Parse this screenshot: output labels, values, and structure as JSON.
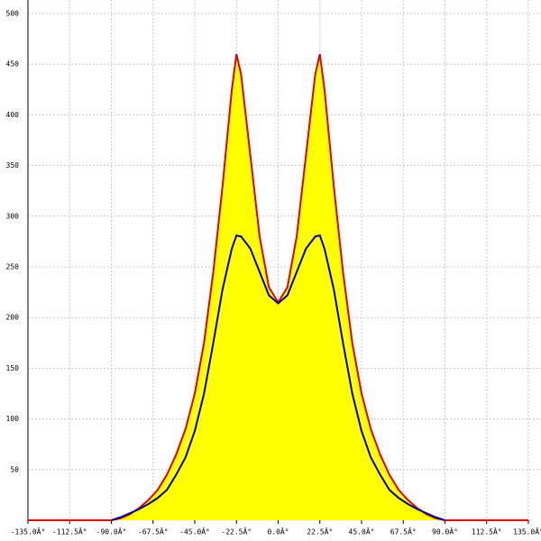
{
  "chart_data": {
    "type": "area",
    "x": [
      -135,
      -130,
      -125,
      -120,
      -115,
      -110,
      -105,
      -100,
      -95,
      -90,
      -85,
      -80,
      -75,
      -70,
      -65,
      -60,
      -55,
      -50,
      -45,
      -40,
      -35,
      -30,
      -25,
      -22.5,
      -20,
      -15,
      -10,
      -5,
      0,
      5,
      10,
      15,
      20,
      22.5,
      25,
      30,
      35,
      40,
      45,
      50,
      55,
      60,
      65,
      70,
      75,
      80,
      85,
      90,
      95,
      100,
      105,
      110,
      115,
      120,
      125,
      130,
      135
    ],
    "series": [
      {
        "color": "#e00000",
        "fill": "#ffff00",
        "values": [
          0,
          0,
          0,
          0,
          0,
          0,
          0,
          0,
          0,
          0,
          2,
          6,
          12,
          20,
          30,
          45,
          65,
          90,
          125,
          175,
          245,
          330,
          425,
          460,
          440,
          360,
          280,
          230,
          215,
          230,
          280,
          360,
          440,
          460,
          425,
          330,
          245,
          175,
          125,
          90,
          65,
          45,
          30,
          20,
          12,
          6,
          2,
          0,
          0,
          0,
          0,
          0,
          0,
          0,
          0,
          0,
          0
        ]
      },
      {
        "color": "#0000a0",
        "values": [
          null,
          null,
          null,
          null,
          null,
          null,
          null,
          null,
          null,
          0,
          3,
          7,
          11,
          16,
          22,
          30,
          45,
          62,
          88,
          125,
          175,
          228,
          268,
          281,
          280,
          268,
          245,
          222,
          214,
          222,
          245,
          268,
          280,
          281,
          268,
          228,
          175,
          125,
          88,
          62,
          45,
          30,
          22,
          16,
          11,
          7,
          3,
          0,
          null,
          null,
          null,
          null,
          null,
          null,
          null,
          null,
          null
        ]
      }
    ],
    "xlim": [
      -135,
      135
    ],
    "xticks": [
      {
        "value": -135,
        "label": "-135.0Â°"
      },
      {
        "value": -112.5,
        "label": "-112.5Â°"
      },
      {
        "value": -90,
        "label": "-90.0Â°"
      },
      {
        "value": -67.5,
        "label": "-67.5Â°"
      },
      {
        "value": -45,
        "label": "-45.0Â°"
      },
      {
        "value": -22.5,
        "label": "-22.5Â°"
      },
      {
        "value": 0,
        "label": "0.0Â°"
      },
      {
        "value": 22.5,
        "label": "22.5Â°"
      },
      {
        "value": 45,
        "label": "45.0Â°"
      },
      {
        "value": 67.5,
        "label": "67.5Â°"
      },
      {
        "value": 90,
        "label": "90.0Â°"
      },
      {
        "value": 112.5,
        "label": "112.5Â°"
      },
      {
        "value": 135,
        "label": "135.0Â°"
      }
    ],
    "ylim": [
      0,
      500
    ],
    "yticks": [
      50,
      100,
      150,
      200,
      250,
      300,
      350,
      400,
      450,
      500
    ],
    "grid": true
  }
}
